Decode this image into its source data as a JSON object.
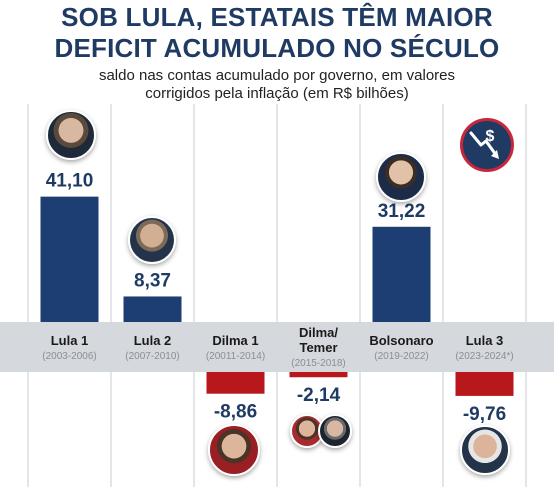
{
  "header": {
    "title_line1": "SOB LULA, ESTATAIS TÊM MAIOR",
    "title_line2": "DEFICIT ACUMULADO NO SÉCULO",
    "subtitle_line1": "saldo nas contas acumulado por governo, em valores",
    "subtitle_line2": "corrigidos pela inflação (em R$ bilhões)"
  },
  "colors": {
    "positive": "#1d3e72",
    "negative": "#b8181c",
    "band": "#d5d9dd",
    "divider": "#c7ccd1",
    "text_dark": "#1f3b64"
  },
  "icons": [
    "money-down-icon"
  ],
  "chart_data": {
    "type": "bar",
    "title": "SOB LULA, ESTATAIS TÊM MAIOR DEFICIT ACUMULADO NO SÉCULO",
    "subtitle": "saldo nas contas acumulado por governo, em valores corrigidos pela inflação (em R$ bilhões)",
    "categories": [
      "Lula 1",
      "Lula 2",
      "Dilma 1",
      "Dilma/\nTemer",
      "Bolsonaro",
      "Lula 3"
    ],
    "periods": [
      "(2003-2006)",
      "(2007-2010)",
      "(20011-2014)",
      "(2015-2018)",
      "(2019-2022)",
      "(2023-2024*)"
    ],
    "values": [
      41.1,
      8.37,
      -8.86,
      -2.14,
      31.22,
      -9.76
    ],
    "value_labels": [
      "41,10",
      "8,37",
      "-8,86",
      "-2,14",
      "31,22",
      "-9,76"
    ],
    "ylim": [
      -10,
      45
    ],
    "grid": false,
    "xlabel": "",
    "ylabel": ""
  }
}
